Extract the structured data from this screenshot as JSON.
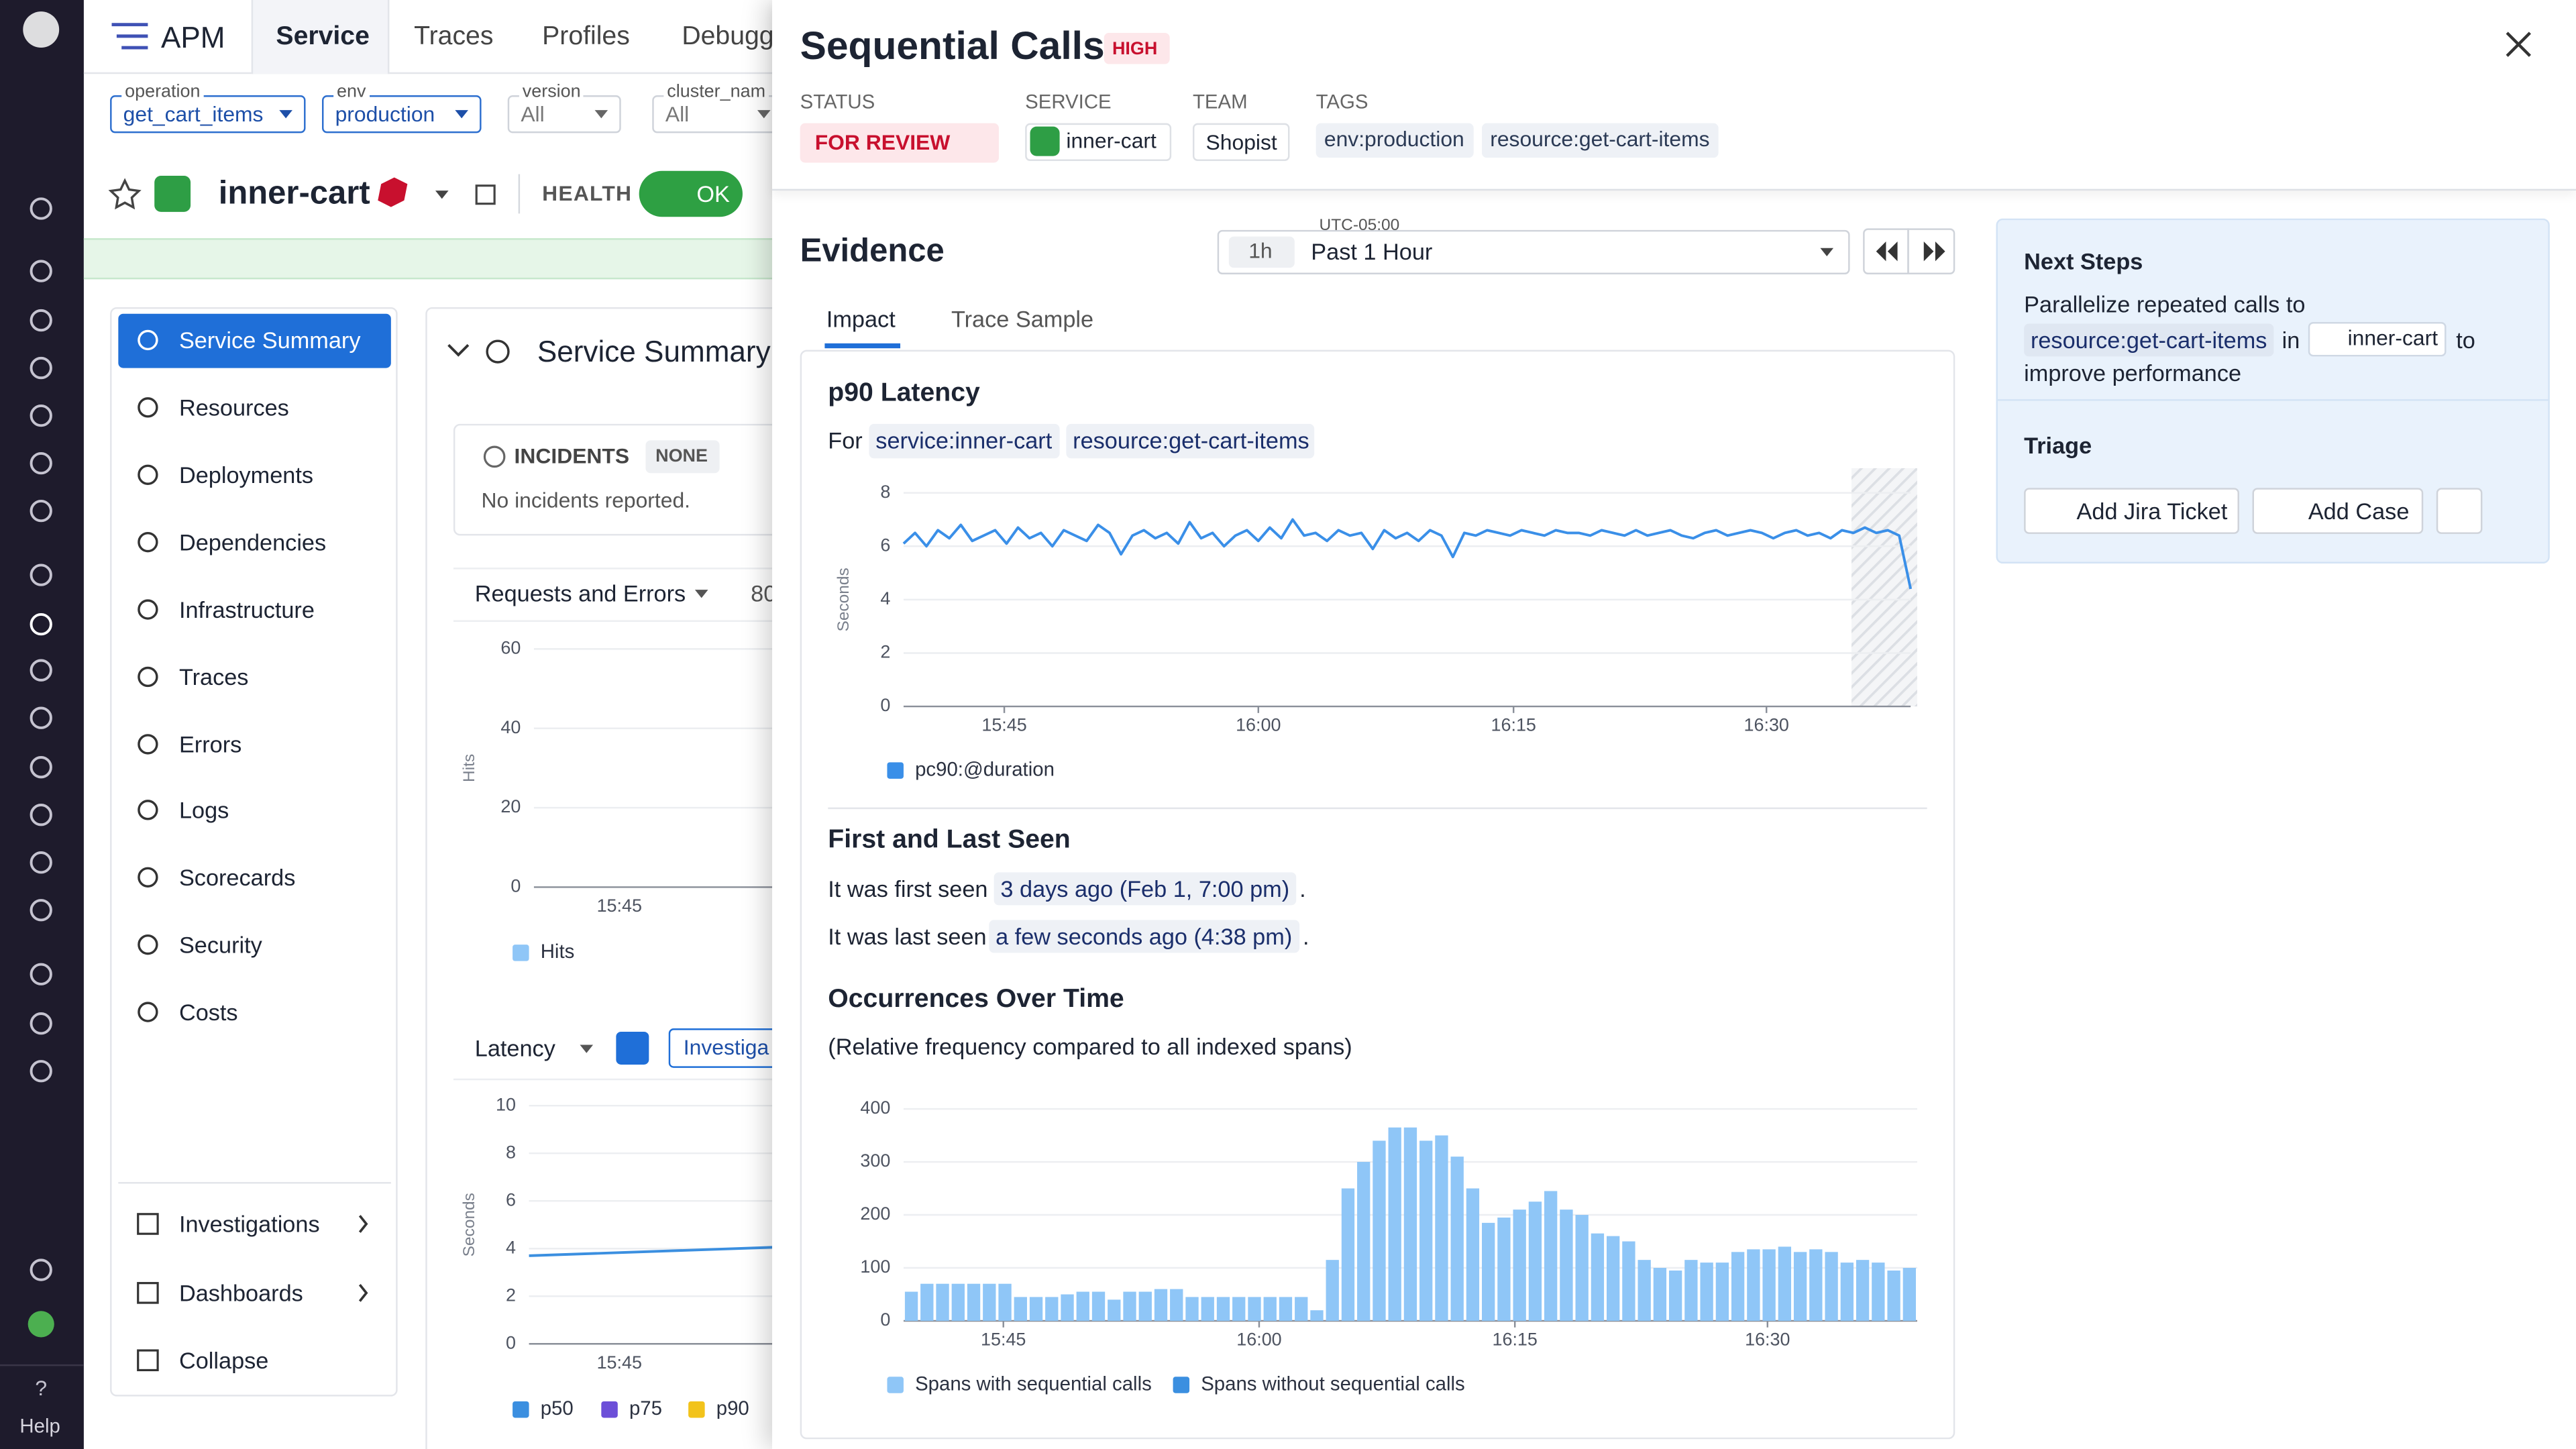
{
  "nav": {
    "app": "APM",
    "tabs": [
      "Service",
      "Traces",
      "Profiles",
      "Debugg"
    ],
    "help": "Help"
  },
  "filters": [
    {
      "label": "operation",
      "value": "get_cart_items"
    },
    {
      "label": "env",
      "value": "production"
    },
    {
      "label": "version",
      "value": "All"
    },
    {
      "label": "cluster_nam",
      "value": "All"
    }
  ],
  "service": {
    "name": "inner-cart",
    "health_label": "HEALTH",
    "health": "OK"
  },
  "sidebar": {
    "items": [
      "Service Summary",
      "Resources",
      "Deployments",
      "Dependencies",
      "Infrastructure",
      "Traces",
      "Errors",
      "Logs",
      "Scorecards",
      "Security",
      "Costs"
    ],
    "bottom": [
      "Investigations",
      "Dashboards",
      "Collapse"
    ]
  },
  "summary": {
    "title": "Service Summary",
    "incidents_label": "INCIDENTS",
    "incidents_badge": "NONE",
    "incidents_text": "No incidents reported.",
    "requests_title": "Requests and Errors",
    "requests_extra": "80",
    "hits_chart": {
      "type": "bar",
      "y_label": "Hits",
      "ylim": [
        0,
        60
      ],
      "yticks": [
        0,
        20,
        40,
        60
      ],
      "x_labels": [
        "15:45"
      ],
      "series": [
        {
          "name": "Hits",
          "color": "#8fc6f7"
        }
      ]
    },
    "latency_title": "Latency",
    "investigate": "Investiga",
    "latency_chart": {
      "type": "line",
      "y_label": "Seconds",
      "ylim": [
        0,
        10
      ],
      "yticks": [
        0,
        2,
        4,
        6,
        8,
        10
      ],
      "x_labels": [
        "15:45"
      ],
      "series": [
        {
          "name": "p50",
          "color": "#3b8fe0",
          "values": [
            3.7,
            4.1
          ]
        },
        {
          "name": "p75",
          "color": "#6c4fd8"
        },
        {
          "name": "p90",
          "color": "#f2c31b"
        }
      ]
    }
  },
  "panel": {
    "title": "Sequential Calls",
    "severity": "HIGH",
    "status_label": "STATUS",
    "status": "FOR REVIEW",
    "service_label": "SERVICE",
    "service": "inner-cart",
    "team_label": "TEAM",
    "team": "Shopist",
    "tags_label": "TAGS",
    "tags": [
      "env:production",
      "resource:get-cart-items"
    ],
    "evidence": "Evidence",
    "timezone": "UTC-05:00",
    "time_chip": "1h",
    "time_range": "Past 1 Hour",
    "tabs": [
      "Impact",
      "Trace Sample"
    ],
    "latency": {
      "title": "p90 Latency",
      "for": "For",
      "tags": [
        "service:inner-cart",
        "resource:get-cart-items"
      ],
      "chart": {
        "type": "line",
        "y_label": "Seconds",
        "ylim": [
          0,
          8
        ],
        "yticks": [
          0,
          2,
          4,
          6,
          8
        ],
        "xticks": [
          {
            "value": 8.8,
            "label": "15:45"
          },
          {
            "value": 31.0,
            "label": "16:00"
          },
          {
            "value": 53.3,
            "label": "16:15"
          },
          {
            "value": 75.4,
            "label": "16:30"
          }
        ],
        "series": [
          {
            "name": "pc90:@duration",
            "color": "#3a8fe8",
            "values": [
              6.1,
              6.5,
              6.0,
              6.6,
              6.3,
              6.8,
              6.2,
              6.4,
              6.6,
              6.1,
              6.7,
              6.3,
              6.5,
              6.0,
              6.6,
              6.4,
              6.2,
              6.8,
              6.5,
              5.7,
              6.4,
              6.6,
              6.3,
              6.5,
              6.1,
              6.9,
              6.3,
              6.5,
              6.0,
              6.4,
              6.6,
              6.2,
              6.7,
              6.3,
              7.0,
              6.4,
              6.5,
              6.2,
              6.6,
              6.4,
              6.5,
              5.9,
              6.6,
              6.3,
              6.5,
              6.2,
              6.6,
              6.4,
              5.6,
              6.5,
              6.4,
              6.6,
              6.5,
              6.4,
              6.6,
              6.5,
              6.4,
              6.6,
              6.5,
              6.5,
              6.4,
              6.6,
              6.5,
              6.4,
              6.6,
              6.4,
              6.5,
              6.6,
              6.4,
              6.3,
              6.5,
              6.6,
              6.4,
              6.5,
              6.6,
              6.5,
              6.3,
              6.5,
              6.6,
              6.4,
              6.5,
              6.3,
              6.6,
              6.5,
              6.7,
              6.5,
              6.6,
              6.4,
              4.4
            ]
          }
        ]
      }
    },
    "seen": {
      "title": "First and Last Seen",
      "first_prefix": "It was first seen",
      "first": "3 days ago (Feb 1, 7:00 pm)",
      "last_prefix": "It was last seen",
      "last": "a few seconds ago (4:38 pm)",
      "period": "."
    },
    "occurrences": {
      "title": "Occurrences Over Time",
      "subtitle": "(Relative frequency compared to all indexed spans)",
      "chart": {
        "type": "bar",
        "ylim": [
          0,
          400
        ],
        "yticks": [
          0,
          100,
          200,
          300,
          400
        ],
        "xticks": [
          {
            "value": 6.4,
            "label": "15:45"
          },
          {
            "value": 22.8,
            "label": "16:00"
          },
          {
            "value": 39.2,
            "label": "16:15"
          },
          {
            "value": 55.4,
            "label": "16:30"
          }
        ],
        "series": [
          {
            "name": "Spans with sequential calls",
            "color": "#8fc6f7",
            "values": [
              55,
              70,
              70,
              70,
              70,
              70,
              70,
              45,
              45,
              45,
              50,
              55,
              55,
              40,
              55,
              55,
              60,
              60,
              45,
              45,
              45,
              45,
              45,
              45,
              45,
              45,
              20,
              115,
              250,
              300,
              340,
              365,
              365,
              340,
              350,
              310,
              250,
              185,
              195,
              210,
              225,
              245,
              210,
              200,
              165,
              160,
              150,
              115,
              100,
              95,
              115,
              110,
              110,
              130,
              135,
              135,
              140,
              130,
              135,
              130,
              110,
              115,
              110,
              95,
              100
            ]
          },
          {
            "name": "Spans without sequential calls",
            "color": "#3b8fe0"
          }
        ]
      }
    },
    "next_steps": {
      "title": "Next Steps",
      "text_before": "Parallelize repeated calls to",
      "resource": "resource:get-cart-items",
      "in": "in",
      "service": "inner-cart",
      "to": "to",
      "text_after": "improve performance"
    },
    "triage": {
      "title": "Triage",
      "buttons": [
        "Add Jira Ticket",
        "Add Case"
      ]
    }
  }
}
